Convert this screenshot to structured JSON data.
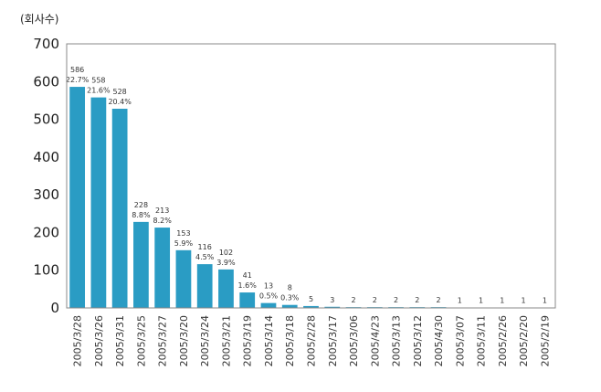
{
  "chart_data": {
    "type": "bar",
    "ylabel": "(회사수)",
    "xlabel": "",
    "title": "",
    "ylim": [
      0,
      700
    ],
    "yticks": [
      0,
      100,
      200,
      300,
      400,
      500,
      600,
      700
    ],
    "grid": false,
    "bar_color": "#2a9cc4",
    "categories": [
      "2005/3/28",
      "2005/3/26",
      "2005/3/31",
      "2005/3/25",
      "2005/3/27",
      "2005/3/20",
      "2005/3/24",
      "2005/3/21",
      "2005/3/19",
      "2005/3/14",
      "2005/3/18",
      "2005/2/28",
      "2005/3/17",
      "2005/3/06",
      "2005/4/23",
      "2005/3/13",
      "2005/3/12",
      "2005/4/30",
      "2005/3/07",
      "2005/3/11",
      "2005/2/26",
      "2005/2/20",
      "2005/2/19"
    ],
    "values": [
      586,
      558,
      528,
      228,
      213,
      153,
      116,
      102,
      41,
      13,
      8,
      5,
      3,
      2,
      2,
      2,
      2,
      2,
      1,
      1,
      1,
      1,
      1
    ],
    "value_labels": [
      "586",
      "558",
      "528",
      "228",
      "213",
      "153",
      "116",
      "102",
      "41",
      "13",
      "8",
      "5",
      "3",
      "2",
      "2",
      "2",
      "2",
      "2",
      "1",
      "1",
      "1",
      "1",
      "1"
    ],
    "percent_labels": [
      "22.7%",
      "21.6%",
      "20.4%",
      "8.8%",
      "8.2%",
      "5.9%",
      "4.5%",
      "3.9%",
      "1.6%",
      "0.5%",
      "0.3%",
      "",
      "",
      "",
      "",
      "",
      "",
      "",
      "",
      "",
      "",
      "",
      ""
    ]
  }
}
